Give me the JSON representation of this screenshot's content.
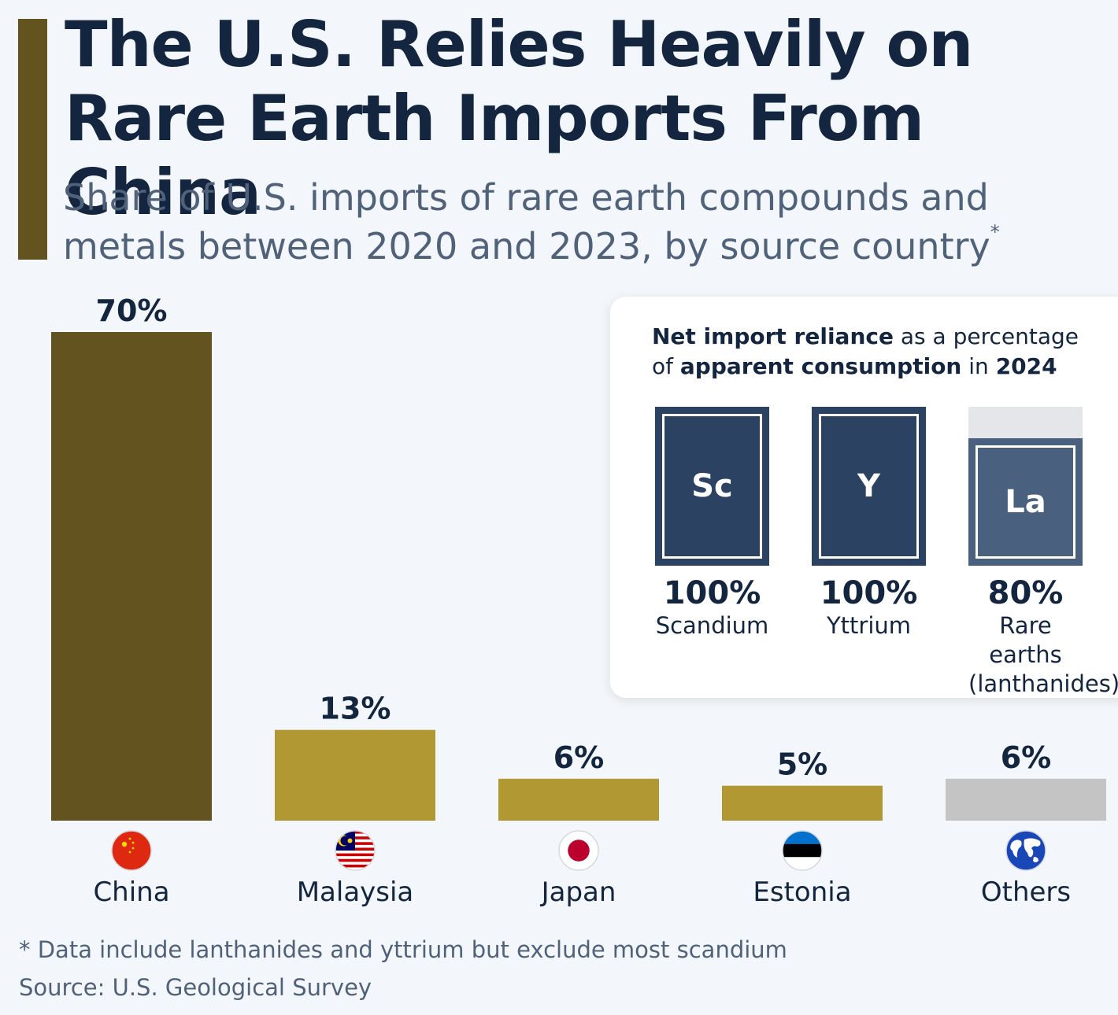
{
  "header": {
    "title": "The U.S. Relies Heavily on Rare Earth Imports From China",
    "subtitle": "Share of U.S. imports of rare earth compounds and metals between 2020 and 2023, by source country",
    "subtitle_mark": "*"
  },
  "chart_data": {
    "type": "bar",
    "title": "The U.S. Relies Heavily on Rare Earth Imports From China",
    "subtitle": "Share of U.S. imports of rare earth compounds and metals between 2020 and 2023, by source country*",
    "categories": [
      "China",
      "Malaysia",
      "Japan",
      "Estonia",
      "Others"
    ],
    "values": [
      70,
      13,
      6,
      5,
      6
    ],
    "value_labels": [
      "70%",
      "13%",
      "6%",
      "5%",
      "6%"
    ],
    "unit": "%",
    "ylim": [
      0,
      70
    ],
    "grid": false,
    "bar_colors": [
      "#63531f",
      "#b29832",
      "#b29832",
      "#b29832",
      "#c4c4c4"
    ],
    "flags": [
      "china-flag-icon",
      "malaysia-flag-icon",
      "japan-flag-icon",
      "estonia-flag-icon",
      "globe-icon"
    ]
  },
  "inset": {
    "title_segments": [
      {
        "text": "Net import reliance",
        "bold": true
      },
      {
        "text": " as a percentage of ",
        "bold": false
      },
      {
        "text": "apparent consumption",
        "bold": true
      },
      {
        "text": " in ",
        "bold": false
      },
      {
        "text": "2024",
        "bold": true
      }
    ],
    "elements": [
      {
        "symbol": "Sc",
        "value": 100,
        "pct": "100%",
        "name": "Scandium",
        "color": "#2b4262"
      },
      {
        "symbol": "Y",
        "value": 100,
        "pct": "100%",
        "name": "Yttrium",
        "color": "#2b4262"
      },
      {
        "symbol": "La",
        "value": 80,
        "pct": "80%",
        "name": "Rare earths (lanthanides)",
        "color": "#4a607f"
      }
    ]
  },
  "footer": {
    "note": "* Data include lanthanides and yttrium but exclude most scandium",
    "source": "Source: U.S. Geological Survey"
  }
}
